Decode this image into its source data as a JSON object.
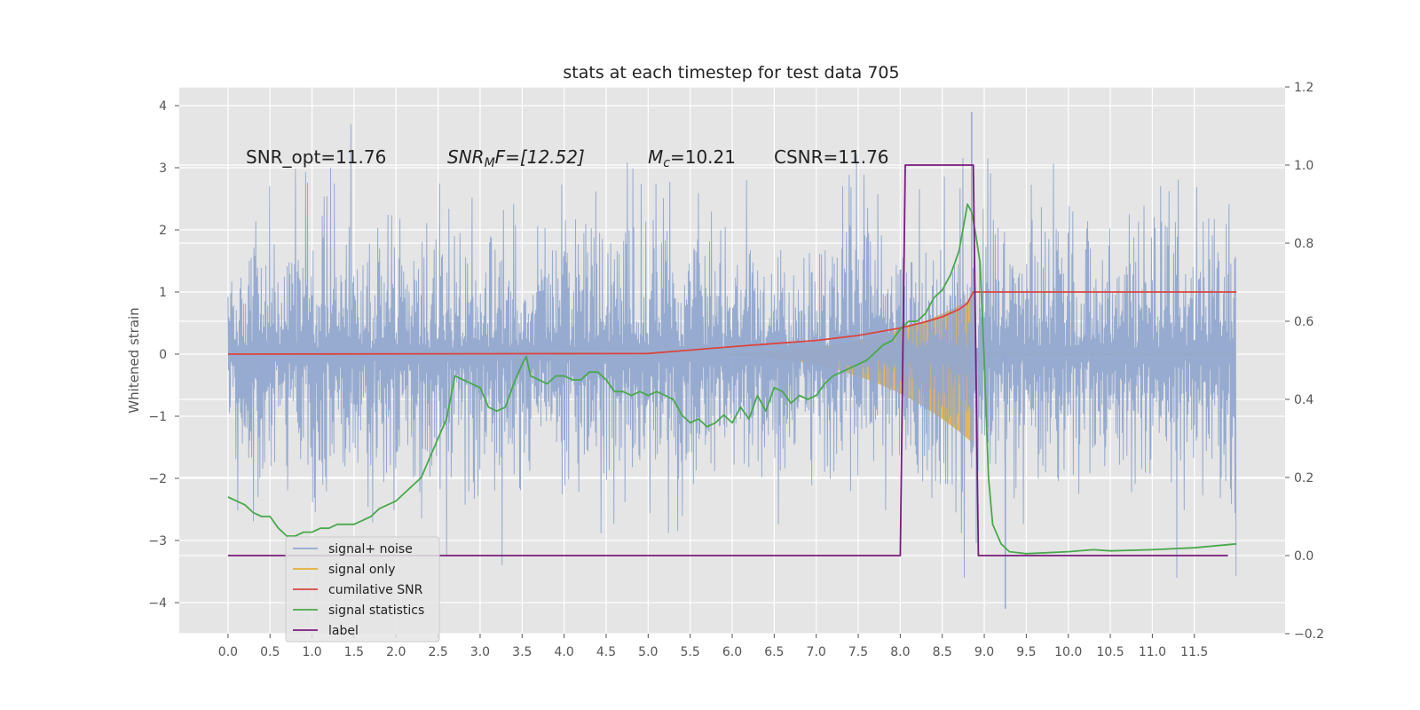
{
  "chart_data": {
    "type": "line",
    "title": "stats at each timestep for test data 705",
    "ylabel": "Whitened strain",
    "ylabel_right": "",
    "xlabel": "",
    "xlim": [
      -0.58,
      12.58
    ],
    "ylim": [
      -4.5,
      4.3
    ],
    "ylim_right": [
      -0.2,
      1.2
    ],
    "x_ticks": [
      "0.0",
      "0.5",
      "1.0",
      "1.5",
      "2.0",
      "2.5",
      "3.0",
      "3.5",
      "4.0",
      "4.5",
      "5.0",
      "5.5",
      "6.0",
      "6.5",
      "7.0",
      "7.5",
      "8.0",
      "8.5",
      "9.0",
      "9.5",
      "10.0",
      "10.5",
      "11.0",
      "11.5"
    ],
    "y_ticks": [
      "4",
      "3",
      "2",
      "1",
      "0",
      "−1",
      "−2",
      "−3",
      "−4"
    ],
    "y_ticks_right": [
      "1.2",
      "1.0",
      "0.8",
      "0.6",
      "0.4",
      "0.2",
      "0.0",
      "−0.2"
    ],
    "grid": true,
    "legend_position": "lower-left",
    "annotations": {
      "snr_opt": "SNR_opt=11.76",
      "snr_mf_main": "SNR",
      "snr_mf_sub": "M",
      "snr_mf_tail": "F=[12.52]",
      "mc_main": "M",
      "mc_sub": "c",
      "mc_tail": "=10.21",
      "csnr": "CSNR=11.76"
    },
    "series": [
      {
        "name": "signal+ noise",
        "color": "#92a8cf",
        "axis": "left",
        "style": "noise band",
        "x_range": [
          0.0,
          12.0
        ],
        "envelope_typical": [
          -1.9,
          2.1
        ],
        "extremes": {
          "max": 3.9,
          "max_at": 8.85,
          "min": -4.1,
          "min_at": 9.25
        }
      },
      {
        "name": "signal only",
        "color": "#e5ae38",
        "axis": "left",
        "style": "chirp band",
        "start": 5.0,
        "merger": 8.87,
        "peak_amplitude": 0.9,
        "after_merger": 0.0
      },
      {
        "name": "cumilative SNR",
        "color": "#d9463f",
        "axis": "left",
        "x": [
          0.0,
          5.0,
          6.0,
          7.0,
          7.5,
          8.0,
          8.3,
          8.5,
          8.7,
          8.8,
          8.87,
          9.0,
          12.0
        ],
        "y": [
          0.0,
          0.01,
          0.12,
          0.22,
          0.3,
          0.42,
          0.52,
          0.6,
          0.72,
          0.82,
          1.0,
          1.0,
          1.0
        ]
      },
      {
        "name": "signal statistics",
        "color": "#4aa84c",
        "axis": "right",
        "x": [
          0.0,
          0.1,
          0.2,
          0.3,
          0.4,
          0.5,
          0.6,
          0.7,
          0.8,
          0.9,
          1.0,
          1.1,
          1.2,
          1.3,
          1.4,
          1.5,
          1.6,
          1.7,
          1.8,
          1.9,
          2.0,
          2.1,
          2.2,
          2.3,
          2.4,
          2.5,
          2.6,
          2.7,
          2.8,
          2.9,
          3.0,
          3.1,
          3.2,
          3.3,
          3.4,
          3.5,
          3.55,
          3.6,
          3.7,
          3.8,
          3.9,
          4.0,
          4.1,
          4.2,
          4.3,
          4.4,
          4.5,
          4.6,
          4.7,
          4.8,
          4.9,
          5.0,
          5.1,
          5.2,
          5.3,
          5.4,
          5.5,
          5.6,
          5.7,
          5.8,
          5.9,
          6.0,
          6.1,
          6.2,
          6.3,
          6.4,
          6.5,
          6.6,
          6.7,
          6.8,
          6.9,
          7.0,
          7.1,
          7.2,
          7.3,
          7.4,
          7.5,
          7.6,
          7.7,
          7.8,
          7.9,
          8.0,
          8.1,
          8.2,
          8.3,
          8.35,
          8.4,
          8.5,
          8.6,
          8.7,
          8.75,
          8.8,
          8.85,
          8.9,
          8.95,
          9.0,
          9.05,
          9.1,
          9.2,
          9.3,
          9.5,
          10.0,
          10.3,
          10.5,
          11.0,
          11.5,
          12.0
        ],
        "y": [
          0.15,
          0.14,
          0.13,
          0.11,
          0.1,
          0.1,
          0.07,
          0.05,
          0.05,
          0.06,
          0.06,
          0.07,
          0.07,
          0.08,
          0.08,
          0.08,
          0.09,
          0.1,
          0.12,
          0.13,
          0.14,
          0.16,
          0.18,
          0.2,
          0.25,
          0.3,
          0.35,
          0.46,
          0.45,
          0.44,
          0.43,
          0.38,
          0.37,
          0.38,
          0.44,
          0.49,
          0.51,
          0.46,
          0.45,
          0.44,
          0.46,
          0.46,
          0.45,
          0.45,
          0.47,
          0.47,
          0.45,
          0.42,
          0.42,
          0.41,
          0.42,
          0.41,
          0.42,
          0.41,
          0.4,
          0.36,
          0.34,
          0.35,
          0.33,
          0.34,
          0.36,
          0.34,
          0.38,
          0.35,
          0.41,
          0.37,
          0.43,
          0.42,
          0.39,
          0.41,
          0.4,
          0.41,
          0.44,
          0.46,
          0.47,
          0.48,
          0.49,
          0.5,
          0.52,
          0.54,
          0.55,
          0.58,
          0.6,
          0.6,
          0.62,
          0.64,
          0.66,
          0.68,
          0.72,
          0.78,
          0.84,
          0.9,
          0.88,
          0.82,
          0.75,
          0.5,
          0.2,
          0.08,
          0.03,
          0.01,
          0.005,
          0.01,
          0.015,
          0.012,
          0.015,
          0.02,
          0.03
        ]
      },
      {
        "name": "label",
        "color": "#7b1a7d",
        "axis": "right",
        "x": [
          0.0,
          8.0,
          8.06,
          8.87,
          8.93,
          11.9
        ],
        "y": [
          0.0,
          0.0,
          1.0,
          1.0,
          0.0,
          0.0
        ]
      }
    ]
  }
}
